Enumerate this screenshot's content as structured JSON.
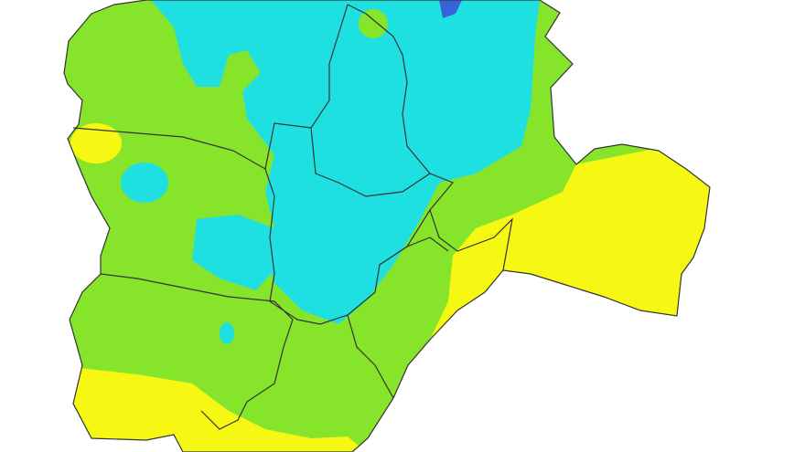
{
  "map": {
    "background": "#ffffff",
    "colors": {
      "green": "#86e42a",
      "cyan": "#1fe0e0",
      "yellow": "#f7f714",
      "blue": "#3a62d8",
      "border": "#333333"
    }
  }
}
